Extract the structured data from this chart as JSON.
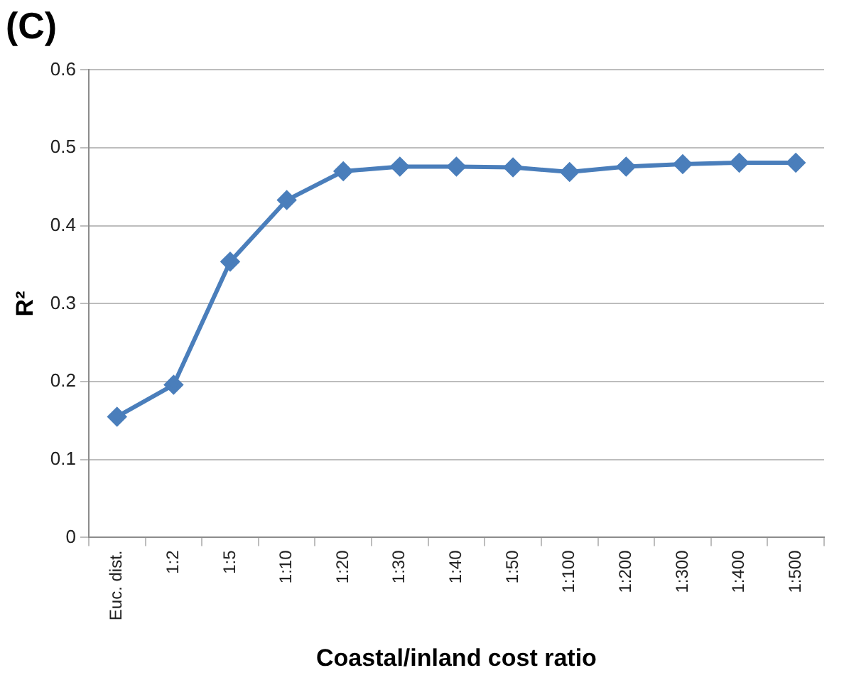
{
  "chart_data": {
    "type": "line",
    "title": "(C)",
    "xlabel": "Coastal/inland cost ratio",
    "ylabel": "R²",
    "categories": [
      "Euc. dist.",
      "1:2",
      "1:5",
      "1:10",
      "1:20",
      "1:30",
      "1:40",
      "1:50",
      "1:100",
      "1:200",
      "1:300",
      "1:400",
      "1:500"
    ],
    "series": [
      {
        "color": "#4a7ebb",
        "values": [
          0.155,
          0.196,
          0.354,
          0.433,
          0.47,
          0.476,
          0.476,
          0.475,
          0.469,
          0.476,
          0.479,
          0.481,
          0.481
        ]
      }
    ],
    "ylim": [
      0,
      0.6
    ],
    "yticks": [
      0,
      0.1,
      0.2,
      0.3,
      0.4,
      0.5,
      0.6
    ],
    "grid": "y",
    "legend": false,
    "marker": "diamond",
    "line_style": "solid"
  }
}
